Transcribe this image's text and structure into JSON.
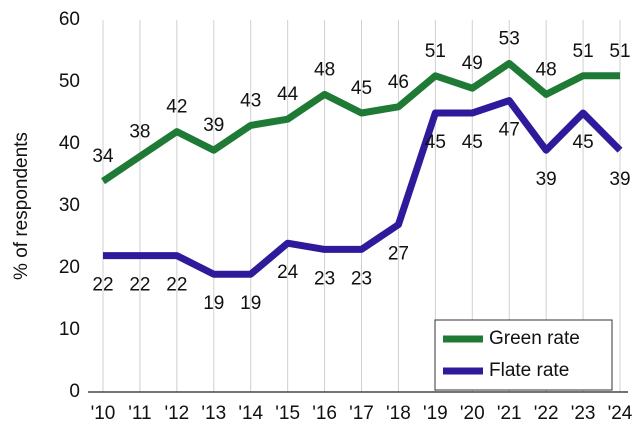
{
  "chart_data": {
    "type": "line",
    "y_label": "% of respondents",
    "categories": [
      "'10",
      "'11",
      "'12",
      "'13",
      "'14",
      "'15",
      "'16",
      "'17",
      "'18",
      "'19",
      "'20",
      "'21",
      "'22",
      "'23",
      "'24"
    ],
    "series": [
      {
        "name": "Green rate",
        "color": "#1f7a35",
        "values": [
          34,
          38,
          42,
          39,
          43,
          44,
          48,
          45,
          46,
          51,
          49,
          53,
          48,
          51,
          51
        ]
      },
      {
        "name": "Flate rate",
        "color": "#2e1b9b",
        "values": [
          22,
          22,
          22,
          19,
          19,
          24,
          23,
          23,
          27,
          45,
          45,
          47,
          39,
          45,
          39
        ]
      }
    ],
    "ylim": [
      0,
      60
    ],
    "yticks": [
      0,
      10,
      20,
      30,
      40,
      50,
      60
    ],
    "grid": true,
    "legend": "lower right"
  }
}
